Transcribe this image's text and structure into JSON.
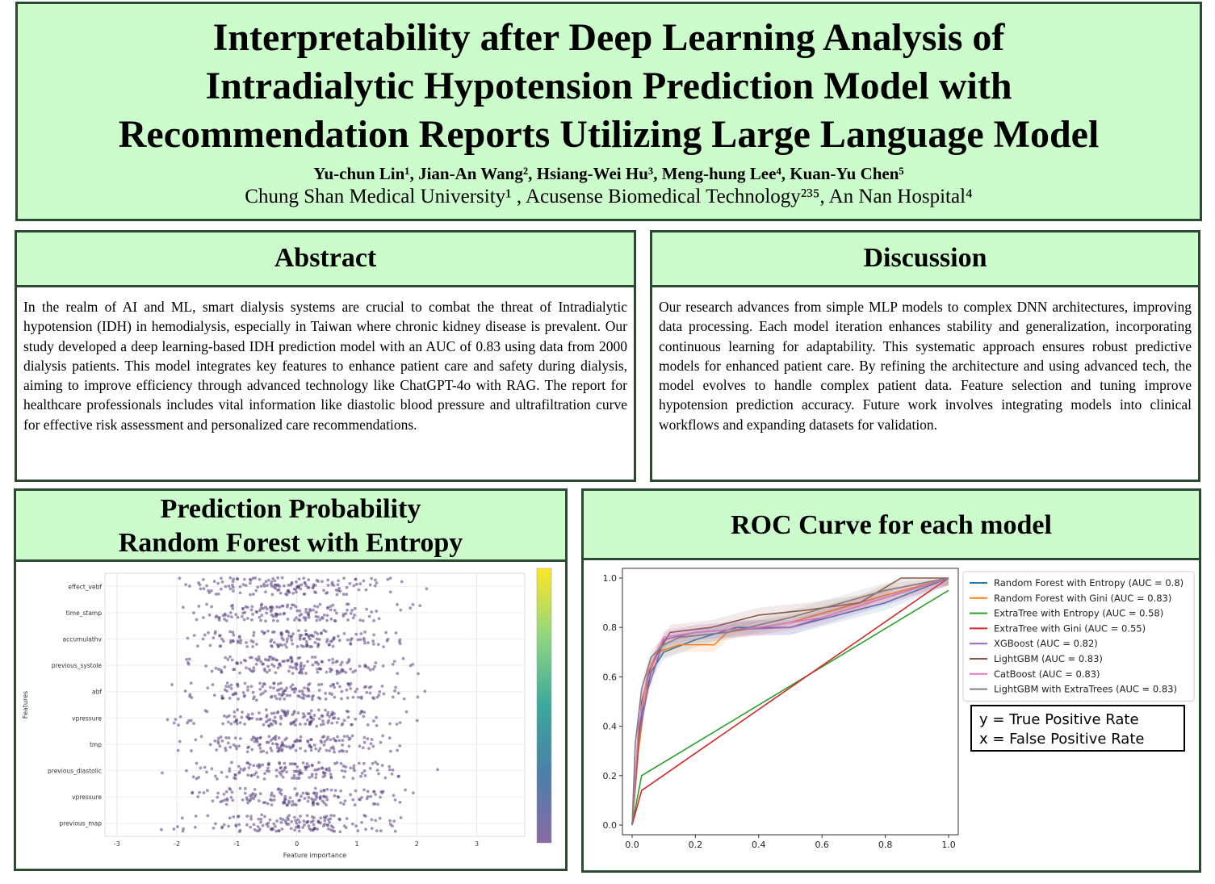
{
  "header": {
    "title_lines": [
      "Interpretability after Deep Learning Analysis of",
      "Intradialytic Hypotension Prediction Model with",
      "Recommendation Reports Utilizing Large Language Model"
    ],
    "authors": "Yu-chun Lin¹, Jian-An Wang², Hsiang-Wei Hu³, Meng-hung Lee⁴, Kuan-Yu Chen⁵",
    "affiliations": "Chung Shan Medical University¹ , Acusense Biomedical Technology²³⁵, An Nan Hospital⁴"
  },
  "abstract": {
    "heading": "Abstract",
    "text": "In the realm of AI and ML, smart dialysis systems are crucial to combat the threat of Intradialytic hypotension (IDH) in hemodialysis, especially in Taiwan where chronic kidney disease is prevalent. Our study developed a deep learning-based IDH prediction model with an AUC of 0.83 using data from 2000 dialysis patients. This model integrates key features to enhance patient care and safety during dialysis, aiming to improve efficiency through advanced technology like ChatGPT-4o with RAG. The report for healthcare professionals includes vital information like diastolic blood pressure and ultrafiltration curve for effective risk assessment and personalized care recommendations."
  },
  "discussion": {
    "heading": "Discussion",
    "text": "Our research advances from simple MLP models to complex DNN architectures, improving data processing. Each model iteration enhances stability and generalization, incorporating continuous learning for adaptability. This systematic approach ensures robust predictive models for enhanced patient care. By refining the architecture and using advanced tech, the model evolves to handle complex patient data. Feature selection and tuning improve hypotension prediction accuracy. Future work involves integrating models into clinical workflows and expanding datasets for validation."
  },
  "prediction_panel": {
    "heading_lines": [
      "Prediction Probability",
      "Random Forest with Entropy"
    ]
  },
  "roc_panel": {
    "heading": "ROC Curve for each model",
    "note_lines": [
      "y = True Positive Rate",
      "x = False Positive Rate"
    ]
  },
  "chart_data": [
    {
      "type": "scatter",
      "title": "",
      "xlabel": "Feature importance",
      "ylabel": "Features",
      "xlim": [
        -3.2,
        3.8
      ],
      "xticks": [
        -3,
        -2,
        -1,
        0,
        1,
        2,
        3
      ],
      "categories": [
        "effect_vebf",
        "time_stamp",
        "accumulathv",
        "previous_systole",
        "abf",
        "vpressure",
        "tmp",
        "previous_diastolic",
        "vpressure",
        "previous_map"
      ],
      "point_color": "#5a3f80",
      "colorbar": {
        "colors": [
          "#8a6aa6",
          "#4a7fa8",
          "#3ba89c",
          "#8fd680",
          "#fde725"
        ]
      },
      "grid": true
    },
    {
      "type": "line",
      "title": "",
      "xlabel": "",
      "ylabel": "",
      "xlim": [
        0,
        1
      ],
      "ylim": [
        0,
        1
      ],
      "xticks": [
        0.0,
        0.2,
        0.4,
        0.6,
        0.8,
        1.0
      ],
      "yticks": [
        0.0,
        0.2,
        0.4,
        0.6,
        0.8,
        1.0
      ],
      "legend_position": "top-right",
      "series": [
        {
          "name": "Random Forest with Entropy (AUC = 0.8)",
          "color": "#1f77b4",
          "x": [
            0,
            0.03,
            0.06,
            0.1,
            0.2,
            0.33,
            0.5,
            0.8,
            1.0
          ],
          "y": [
            0,
            0.45,
            0.62,
            0.7,
            0.75,
            0.8,
            0.8,
            0.9,
            1.0
          ]
        },
        {
          "name": "Random Forest with Gini (AUC = 0.83)",
          "color": "#ff7f0e",
          "x": [
            0,
            0.02,
            0.05,
            0.08,
            0.15,
            0.26,
            0.3,
            0.5,
            0.8,
            1.0
          ],
          "y": [
            0,
            0.3,
            0.6,
            0.7,
            0.73,
            0.73,
            0.78,
            0.82,
            0.93,
            1.0
          ]
        },
        {
          "name": "ExtraTree with Entropy (AUC = 0.58)",
          "color": "#2ca02c",
          "x": [
            0,
            0.03,
            1.0
          ],
          "y": [
            0,
            0.2,
            0.95
          ]
        },
        {
          "name": "ExtraTree with Gini (AUC = 0.55)",
          "color": "#d62728",
          "x": [
            0,
            0.03,
            1.0
          ],
          "y": [
            0,
            0.14,
            1.0
          ]
        },
        {
          "name": "XGBoost (AUC = 0.82)",
          "color": "#9467bd",
          "x": [
            0,
            0.02,
            0.05,
            0.1,
            0.2,
            0.3,
            0.5,
            0.8,
            1.0
          ],
          "y": [
            0,
            0.35,
            0.55,
            0.75,
            0.78,
            0.79,
            0.8,
            0.92,
            1.0
          ]
        },
        {
          "name": "LightGBM (AUC = 0.83)",
          "color": "#8c564b",
          "x": [
            0,
            0.03,
            0.06,
            0.12,
            0.25,
            0.4,
            0.55,
            0.72,
            0.85,
            1.0
          ],
          "y": [
            0,
            0.5,
            0.65,
            0.78,
            0.8,
            0.85,
            0.87,
            0.9,
            1.0,
            1.0
          ]
        },
        {
          "name": "CatBoost (AUC = 0.83)",
          "color": "#e377c2",
          "x": [
            0,
            0.02,
            0.05,
            0.1,
            0.2,
            0.4,
            0.6,
            0.8,
            1.0
          ],
          "y": [
            0,
            0.4,
            0.62,
            0.76,
            0.78,
            0.8,
            0.84,
            0.92,
            1.0
          ]
        },
        {
          "name": "LightGBM with ExtraTrees (AUC = 0.83)",
          "color": "#7f7f7f",
          "x": [
            0,
            0.01,
            0.03,
            0.06,
            0.1,
            0.15,
            0.3,
            0.5,
            0.8,
            1.0
          ],
          "y": [
            0,
            0.33,
            0.55,
            0.68,
            0.73,
            0.76,
            0.78,
            0.84,
            0.95,
            1.0
          ]
        }
      ]
    }
  ]
}
